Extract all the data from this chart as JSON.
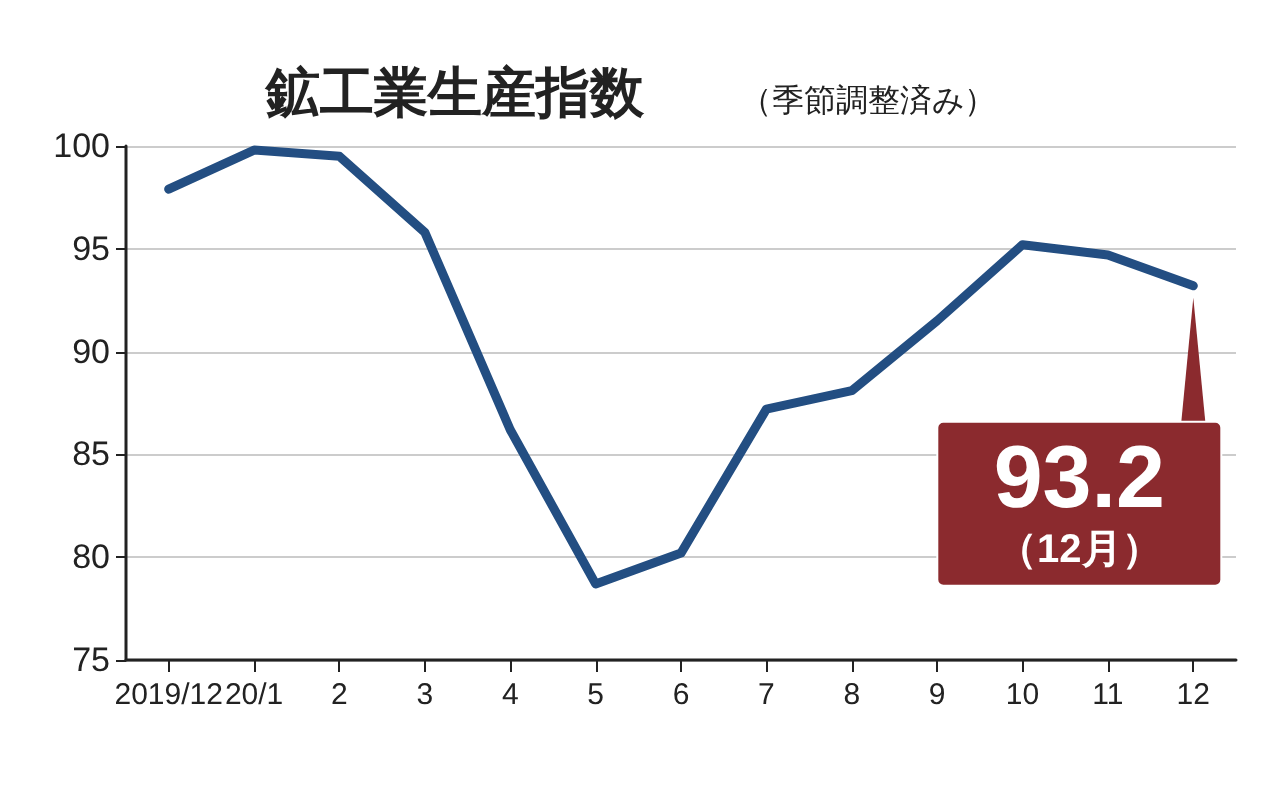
{
  "chart_data": {
    "type": "line",
    "title": "鉱工業生産指数",
    "subtitle": "（季節調整済み）",
    "categories": [
      "2019/12",
      "20/1",
      "2",
      "3",
      "4",
      "5",
      "6",
      "7",
      "8",
      "9",
      "10",
      "11",
      "12"
    ],
    "series": [
      {
        "color": "#234e82",
        "values": [
          97.9,
          99.8,
          99.5,
          95.8,
          86.2,
          78.7,
          80.2,
          87.2,
          88.1,
          91.5,
          95.2,
          94.7,
          93.2
        ]
      }
    ],
    "ylim": [
      75,
      100
    ],
    "yticks": [
      75,
      80,
      85,
      90,
      95,
      100
    ],
    "grid": "y",
    "marker": "none",
    "line_style": "solid",
    "annotations": [
      {
        "text": "93.2",
        "x": "12",
        "y": 93.2
      },
      "（12月）"
    ]
  }
}
